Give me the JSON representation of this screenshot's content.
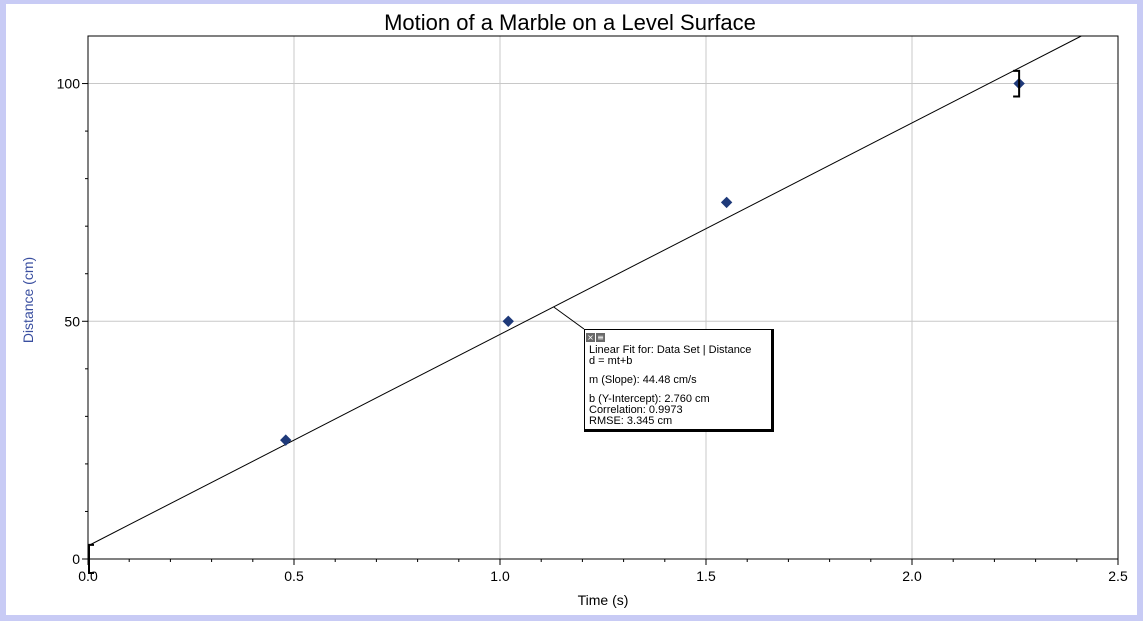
{
  "colors": {
    "background": "#c8cbf5",
    "plot_background": "#ffffff",
    "grid": "#c8c8c8",
    "point": "#1f3a7a",
    "fit_line": "#000000",
    "ylabel": "#3a4fa0"
  },
  "annotation": {
    "close_icon": "close-icon",
    "menu_icon": "menu-icon",
    "line1": "Linear Fit for: Data Set | Distance",
    "line2": "d = mt+b",
    "slope": "m (Slope): 44.48 cm/s",
    "intercept": "b (Y-Intercept): 2.760 cm",
    "correlation": "Correlation: 0.9973",
    "rmse": "RMSE: 3.345 cm"
  },
  "chart_data": {
    "type": "scatter",
    "title": "Motion of a Marble on a Level Surface",
    "xlabel": "Time (s)",
    "ylabel": "Distance (cm)",
    "xlim": [
      0,
      2.5
    ],
    "ylim": [
      0,
      110
    ],
    "x_ticks": [
      0.0,
      0.5,
      1.0,
      1.5,
      2.0,
      2.5
    ],
    "x_tick_labels": [
      "0.0",
      "0.5",
      "1.0",
      "1.5",
      "2.0",
      "2.5"
    ],
    "y_ticks": [
      0,
      50,
      100
    ],
    "y_tick_labels": [
      "0",
      "50",
      "100"
    ],
    "grid": true,
    "series": [
      {
        "x": [
          0.0,
          0.48,
          1.02,
          1.55,
          2.26
        ],
        "y": [
          0,
          25,
          50,
          75,
          100
        ]
      }
    ],
    "fit": {
      "slope": 44.48,
      "intercept": 2.76
    }
  }
}
